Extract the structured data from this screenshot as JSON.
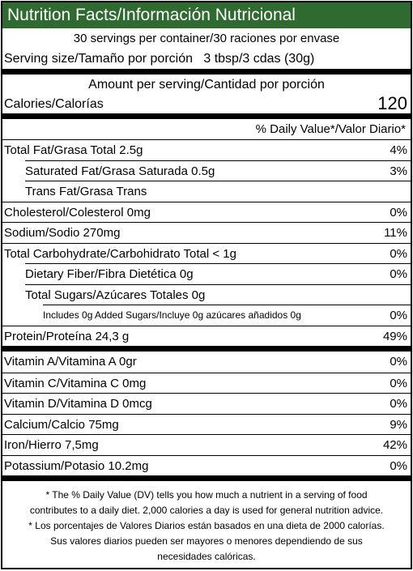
{
  "header": {
    "title": "Nutrition Facts/Información Nutricional"
  },
  "servings": {
    "per_container": "30 servings per container/30 raciones por envase",
    "size_label": "Serving size/Tamaño por porción",
    "size_value": "3 tbsp/3 cdas (30g)"
  },
  "calories": {
    "heading": "Amount per serving/Cantidad por porción",
    "label": "Calories/Calorías",
    "value": 120
  },
  "daily_value_heading": "% Daily Value*/Valor Diario*",
  "nutrients": [
    {
      "label": "Total Fat/Grasa Total 2.5g",
      "dv": "4%"
    },
    {
      "label": "Saturated Fat/Grasa Saturada 0.5g",
      "dv": "3%"
    },
    {
      "label": "Trans Fat/Grasa Trans"
    },
    {
      "label": "Cholesterol/Colesterol 0mg",
      "dv": "0%"
    },
    {
      "label": "Sodium/Sodio 270mg",
      "dv": "11%"
    },
    {
      "label": "Total Carbohydrate/Carbohidrato Total < 1g",
      "dv": "0%"
    },
    {
      "label": "Dietary Fiber/Fibra Dietética 0g",
      "dv": "0%"
    },
    {
      "label": "Total Sugars/Azúcares Totales 0g"
    },
    {
      "label": "Includes 0g Added Sugars/Incluye 0g azúcares añadidos 0g",
      "dv": "0%"
    },
    {
      "label": "Protein/Proteína 24,3 g",
      "dv": "49%"
    }
  ],
  "vitamins_minerals": [
    {
      "label": "Vitamin A/Vitamina A 0gr",
      "dv": "0%"
    },
    {
      "label": "Vitamin C/Vitamina C 0mg",
      "dv": "0%"
    },
    {
      "label": "Vitamin D/Vitamina D 0mcg",
      "dv": "0%"
    },
    {
      "label": "Calcium/Calcio 75mg",
      "dv": "9%"
    },
    {
      "label": "Iron/Hierro 7,5mg",
      "dv": "42%"
    },
    {
      "label": "Potassium/Potasio 10.2mg",
      "dv": "0%"
    }
  ],
  "footnote": [
    "* The % Daily Value (DV) tells you how much a nutrient in a serving of food",
    "contributes to a daily diet. 2,000 calories a day is used for general nutrition advice.",
    "* Los porcentajes de Valores Diarios están basados en una dieta de 2000 calorías.",
    "Sus valores diarios pueden ser mayores o menores dependiendo de sus",
    "necesidades calóricas."
  ]
}
